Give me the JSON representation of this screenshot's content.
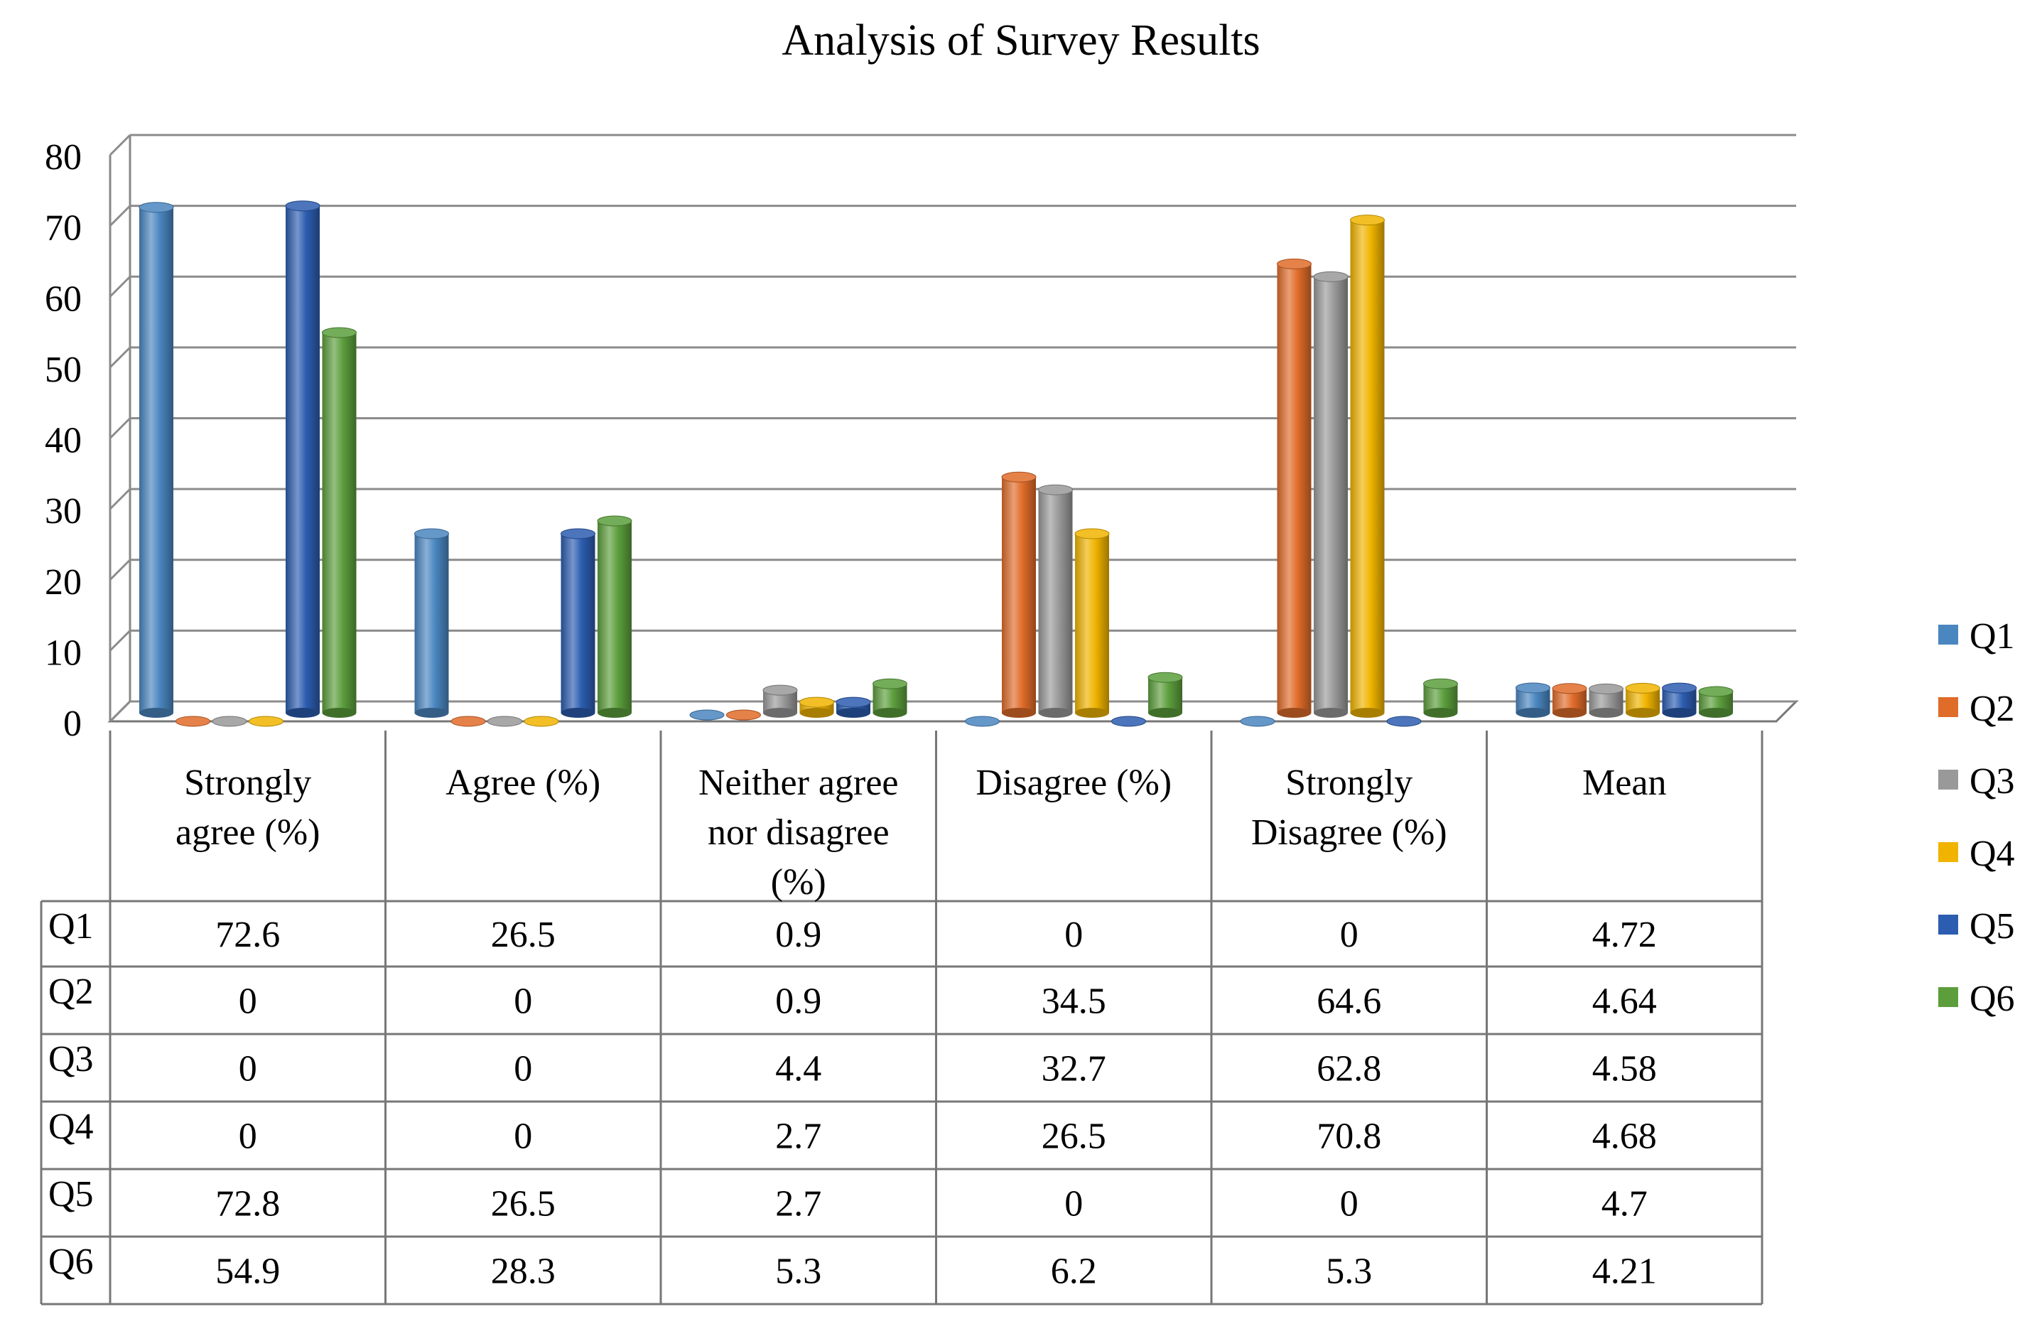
{
  "chart_data": {
    "type": "bar",
    "title": "Analysis of Survey Results",
    "categories": [
      "Strongly agree (%)",
      "Agree (%)",
      "Neither agree nor disagree (%)",
      "Disagree (%)",
      "Strongly Disagree (%)",
      "Mean"
    ],
    "category_lines": [
      [
        "Strongly",
        "agree (%)"
      ],
      [
        "Agree (%)"
      ],
      [
        "Neither agree",
        "nor disagree",
        "(%)"
      ],
      [
        "Disagree (%)"
      ],
      [
        "Strongly",
        "Disagree (%)"
      ],
      [
        "Mean"
      ]
    ],
    "series": [
      {
        "name": "Q1",
        "color": "#4a86c0",
        "values": [
          72.6,
          26.5,
          0.9,
          0,
          0,
          4.72
        ]
      },
      {
        "name": "Q2",
        "color": "#e06c2a",
        "values": [
          0,
          0,
          0.9,
          34.5,
          64.6,
          4.64
        ]
      },
      {
        "name": "Q3",
        "color": "#999999",
        "values": [
          0,
          0,
          4.4,
          32.7,
          62.8,
          4.58
        ]
      },
      {
        "name": "Q4",
        "color": "#f0b400",
        "values": [
          0,
          0,
          2.7,
          26.5,
          70.8,
          4.68
        ]
      },
      {
        "name": "Q5",
        "color": "#2c5db0",
        "values": [
          72.8,
          26.5,
          2.7,
          0,
          0,
          4.7
        ]
      },
      {
        "name": "Q6",
        "color": "#5c9e3c",
        "values": [
          54.9,
          28.3,
          5.3,
          6.2,
          5.3,
          4.21
        ]
      }
    ],
    "table_values": [
      [
        "72.6",
        "26.5",
        "0.9",
        "0",
        "0",
        "4.72"
      ],
      [
        "0",
        "0",
        "0.9",
        "34.5",
        "64.6",
        "4.64"
      ],
      [
        "0",
        "0",
        "4.4",
        "32.7",
        "62.8",
        "4.58"
      ],
      [
        "0",
        "0",
        "2.7",
        "26.5",
        "70.8",
        "4.68"
      ],
      [
        "72.8",
        "26.5",
        "2.7",
        "0",
        "0",
        "4.7"
      ],
      [
        "54.9",
        "28.3",
        "5.3",
        "6.2",
        "5.3",
        "4.21"
      ]
    ],
    "ylim": [
      0,
      80
    ],
    "yticks": [
      "0",
      "10",
      "20",
      "30",
      "40",
      "50",
      "60",
      "70",
      "80"
    ],
    "legend_position": "right",
    "grid": true
  }
}
